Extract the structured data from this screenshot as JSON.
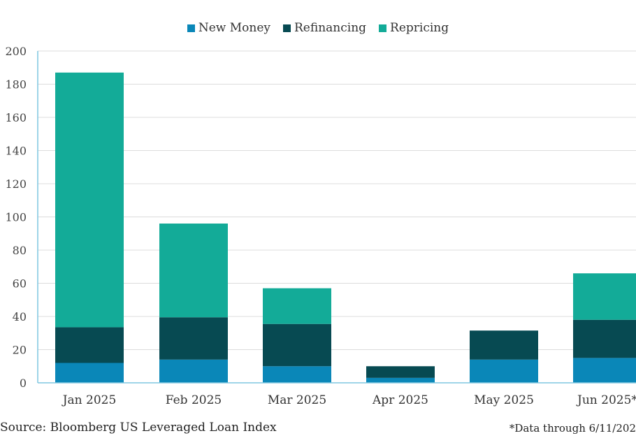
{
  "legend": {
    "items": [
      {
        "label": "New Money",
        "color": "#0a87b8"
      },
      {
        "label": "Refinancing",
        "color": "#074a52"
      },
      {
        "label": "Repricing",
        "color": "#13ab98"
      }
    ]
  },
  "footer": {
    "source": "Source: Bloomberg US Leveraged Loan Index",
    "note": "*Data through 6/11/202"
  },
  "chart_data": {
    "type": "bar",
    "stacked": true,
    "title": "",
    "xlabel": "",
    "ylabel": "",
    "categories": [
      "Jan 2025",
      "Feb 2025",
      "Mar 2025",
      "Apr 2025",
      "May 2025",
      "Jun 2025*"
    ],
    "series": [
      {
        "name": "New Money",
        "color": "#0a87b8",
        "values": [
          12,
          14,
          10,
          3,
          14,
          15
        ]
      },
      {
        "name": "Refinancing",
        "color": "#074a52",
        "values": [
          21.5,
          25.5,
          25.5,
          7,
          17.5,
          23
        ]
      },
      {
        "name": "Repricing",
        "color": "#13ab98",
        "values": [
          153.5,
          56.5,
          21.5,
          0,
          0,
          28
        ]
      }
    ],
    "ylim": [
      0,
      200
    ],
    "yticks": [
      0,
      20,
      40,
      60,
      80,
      100,
      120,
      140,
      160,
      180,
      200
    ],
    "grid": true,
    "legend_position": "top-center"
  }
}
